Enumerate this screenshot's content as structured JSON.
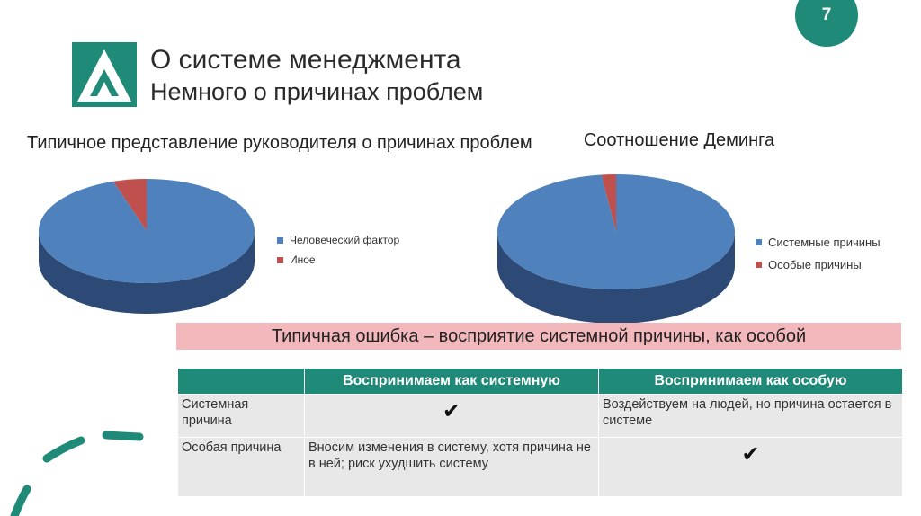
{
  "slide": {
    "page_number": "7",
    "title": "О системе менеджмента",
    "subtitle": "Немного о причинах проблем"
  },
  "colors": {
    "accent": "#1f8a78",
    "blue": "#4f81bd",
    "red": "#c0504d",
    "banner": "#f2b8bb"
  },
  "icons": {
    "logo": "logo-triangle-icon",
    "check": "checkmark-icon"
  },
  "chart_data": [
    {
      "type": "pie",
      "title": "Типичное представление руководителя о причинах проблем",
      "categories": [
        "Человеческий фактор",
        "Иное"
      ],
      "values": [
        95,
        5
      ],
      "colors": [
        "#4f81bd",
        "#c0504d"
      ],
      "legend": "right"
    },
    {
      "type": "pie",
      "title": "Соотношение Деминга",
      "categories": [
        "Системные причины",
        "Особые причины"
      ],
      "values": [
        98,
        2
      ],
      "colors": [
        "#4f81bd",
        "#c0504d"
      ],
      "legend": "right"
    }
  ],
  "banner": {
    "text": "Типичная ошибка – восприятие системной причины, как особой"
  },
  "table": {
    "headers": [
      "",
      "Воспринимаем как системную",
      "Воспринимаем как особую"
    ],
    "rows": [
      {
        "label": "Системная причина",
        "col1": "✔",
        "col2": "Воздействуем на людей, но причина остается в системе"
      },
      {
        "label": "Особая причина",
        "col1": "Вносим изменения в систему, хотя причина не в ней; риск ухудшить систему",
        "col2": "✔"
      }
    ]
  }
}
